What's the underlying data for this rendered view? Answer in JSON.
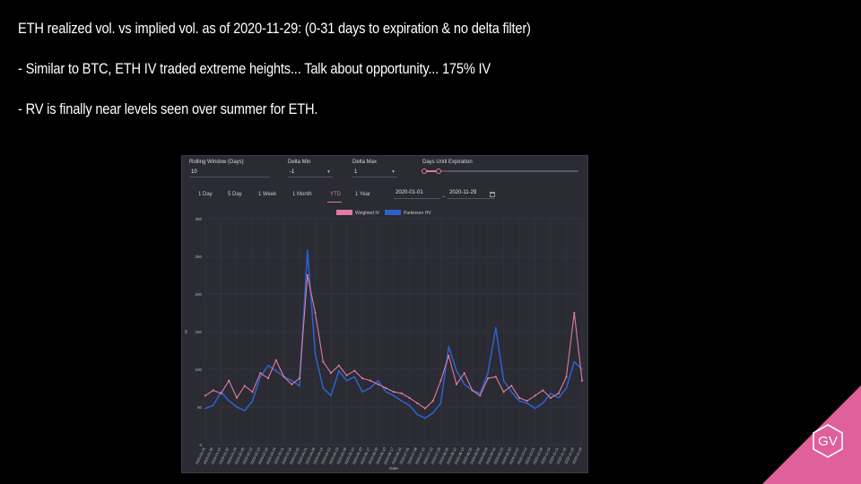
{
  "slide": {
    "line1": "ETH realized vol. vs implied vol. as of 2020-11-29: (0-31 days to expiration & no delta filter)",
    "line2": "- Similar to BTC, ETH IV traded extreme heights... Talk about opportunity... 175% IV",
    "line3": "- RV is finally  near levels seen over summer for ETH."
  },
  "logo": {
    "text": "GV",
    "color": "#e0609a"
  },
  "controls": {
    "rolling_window_label": "Rolling Window (Days)",
    "rolling_window_value": "10",
    "delta_min_label": "Delta Min",
    "delta_min_value": "-1",
    "delta_max_label": "Delta Max",
    "delta_max_value": "1",
    "days_label": "Days Until Expiration"
  },
  "ranges": {
    "tabs": [
      "1 Day",
      "5 Day",
      "1 Week",
      "1 Month",
      "YTD",
      "1 Year"
    ],
    "active": "YTD",
    "start_date": "2020-01-01",
    "end_date": "2020-11-29"
  },
  "colors": {
    "iv": "#e07aa0",
    "hv": "#2f5fc8",
    "bg": "#2a2b33",
    "grid": "#3a3c46"
  },
  "chart_data": {
    "type": "line",
    "xlabel": "Date",
    "ylabel": "IV",
    "ylim": [
      0,
      300
    ],
    "yticks": [
      0,
      50,
      100,
      150,
      200,
      250,
      300
    ],
    "legend_placement": "top-center",
    "grid": true,
    "x": [
      "2020-01-01",
      "2020-01-08",
      "2020-01-15",
      "2020-01-22",
      "2020-01-29",
      "2020-02-05",
      "2020-02-12",
      "2020-02-19",
      "2020-02-26",
      "2020-03-04",
      "2020-03-11",
      "2020-03-18",
      "2020-03-25",
      "2020-04-01",
      "2020-04-08",
      "2020-04-15",
      "2020-04-22",
      "2020-04-29",
      "2020-05-06",
      "2020-05-13",
      "2020-05-20",
      "2020-05-27",
      "2020-06-03",
      "2020-06-10",
      "2020-06-17",
      "2020-06-24",
      "2020-07-01",
      "2020-07-08",
      "2020-07-15",
      "2020-07-22",
      "2020-07-29",
      "2020-08-05",
      "2020-08-12",
      "2020-08-19",
      "2020-08-26",
      "2020-09-02",
      "2020-09-09",
      "2020-09-16",
      "2020-09-23",
      "2020-09-30",
      "2020-10-07",
      "2020-10-14",
      "2020-10-21",
      "2020-10-28",
      "2020-11-04",
      "2020-11-11",
      "2020-11-18",
      "2020-11-25",
      "2020-11-29"
    ],
    "series": [
      {
        "name": "Weighted IV",
        "values": [
          65,
          72,
          68,
          85,
          62,
          78,
          70,
          95,
          88,
          112,
          90,
          80,
          88,
          225,
          175,
          110,
          95,
          105,
          92,
          98,
          88,
          85,
          80,
          75,
          70,
          68,
          62,
          55,
          48,
          58,
          85,
          118,
          80,
          95,
          72,
          65,
          88,
          90,
          70,
          78,
          62,
          58,
          65,
          72,
          62,
          68,
          90,
          175,
          85
        ]
      },
      {
        "name": "Parkinson HV",
        "values": [
          48,
          52,
          70,
          58,
          50,
          45,
          58,
          90,
          105,
          98,
          90,
          85,
          78,
          258,
          120,
          75,
          65,
          98,
          85,
          90,
          70,
          75,
          85,
          70,
          65,
          58,
          52,
          40,
          35,
          42,
          55,
          130,
          98,
          80,
          72,
          68,
          95,
          155,
          85,
          70,
          58,
          55,
          48,
          55,
          68,
          62,
          75,
          110,
          100
        ]
      }
    ]
  }
}
